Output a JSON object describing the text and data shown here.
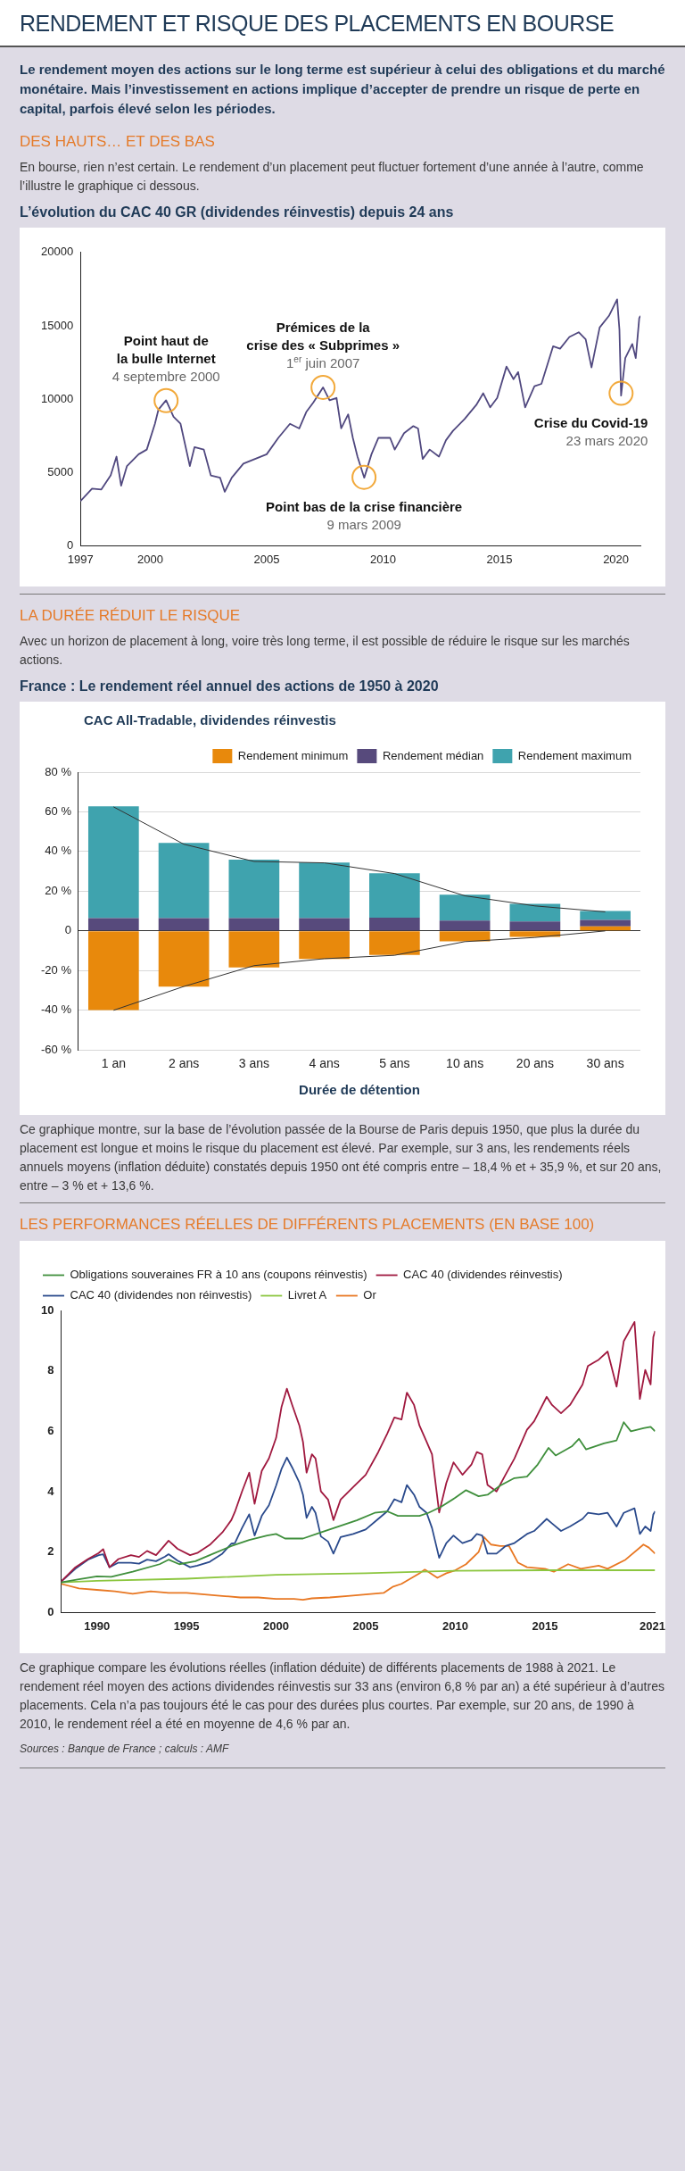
{
  "chart_data": [
    {
      "type": "line",
      "title": "L’évolution du CAC 40 GR (dividendes réinvestis) depuis 24 ans",
      "annotations": [
        "RENDEMENT ET RISQUE DES PLACEMENTS EN BOURSE",
        "Le rendement moyen des actions sur le long terme est supérieur à celui des obligations et du marché monétaire. Mais l’investissement en actions implique d’accepter de prendre un risque de perte en capital, parfois élevé selon les périodes.",
        "DES HAUTS… ET DES BAS",
        "En bourse, rien n’est certain. Le rendement d’un placement peut fluctuer fortement d’une année à l’autre, comme l’illustre le graphique ci dessous.",
        {
          "text": "Point haut de\nla bulle Internet\n4 septembre 2000",
          "x": 2000.68,
          "y": 9900
        },
        {
          "text": "Prémices de la\ncrise des « Subprimes »\n1$^{er}$ juin 2007",
          "x": 2007.42,
          "y": 10800
        },
        {
          "text": "Point bas de la crise financière\n9 mars 2009",
          "x": 2009.18,
          "y": 4670
        },
        {
          "text": "Crise du Covid-19\n23 mars 2020",
          "x": 2020.22,
          "y": 10400
        }
      ],
      "x": [
        1997.0,
        1997.5,
        1997.9,
        1998.3,
        1998.55,
        1998.75,
        1999.0,
        1999.5,
        1999.85,
        2000.2,
        2000.35,
        2000.68,
        2001.0,
        2001.3,
        2001.7,
        2001.9,
        2002.3,
        2002.6,
        2003.0,
        2003.2,
        2003.5,
        2004.0,
        2004.5,
        2005.0,
        2005.5,
        2006.0,
        2006.4,
        2006.7,
        2007.0,
        2007.42,
        2007.7,
        2008.0,
        2008.2,
        2008.5,
        2008.7,
        2008.9,
        2009.19,
        2009.5,
        2009.8,
        2010.3,
        2010.5,
        2010.9,
        2011.3,
        2011.5,
        2011.7,
        2012.0,
        2012.4,
        2012.7,
        2013.0,
        2013.5,
        2014.0,
        2014.3,
        2014.6,
        2014.9,
        2015.3,
        2015.6,
        2015.8,
        2016.1,
        2016.5,
        2016.8,
        2017.3,
        2017.6,
        2018.0,
        2018.4,
        2018.7,
        2018.95,
        2019.3,
        2019.7,
        2020.05,
        2020.15,
        2020.22,
        2020.4,
        2020.7,
        2020.85,
        2021.0,
        2021.05
      ],
      "series": [
        {
          "color": "#50487f",
          "values": [
            3040,
            3900,
            3840,
            4800,
            6080,
            4100,
            5440,
            6240,
            6560,
            8320,
            9280,
            9920,
            8800,
            8320,
            5440,
            6720,
            6560,
            4800,
            4640,
            3680,
            4640,
            5600,
            5920,
            6240,
            7360,
            8320,
            8000,
            9120,
            9760,
            10800,
            9920,
            10080,
            8000,
            8960,
            7360,
            6080,
            4640,
            6240,
            7360,
            7360,
            6560,
            7680,
            8160,
            8000,
            5920,
            6560,
            6080,
            7200,
            7840,
            8640,
            9600,
            10400,
            9440,
            10080,
            12220,
            11360,
            11840,
            9440,
            10880,
            11040,
            13600,
            13440,
            14240,
            14560,
            14080,
            12160,
            14880,
            15680,
            16800,
            14720,
            10240,
            12800,
            13760,
            12800,
            15520,
            15680
          ]
        }
      ],
      "xlim": [
        1997,
        2021.05
      ],
      "xticks": [
        1997,
        2000,
        2005,
        2010,
        2015,
        2020
      ],
      "ylim": [
        0,
        20000
      ],
      "yticks": [
        0,
        5000,
        10000,
        15000,
        20000
      ],
      "grid": false,
      "legend": false
    },
    {
      "type": "bar",
      "title": "France : Le rendement réel annuel des actions de 1950 à 2020",
      "subtitle": "CAC All-Tradable, dividendes réinvestis",
      "xlabel": "Durée de détention",
      "annotations": [
        "LA DURÉE RÉDUIT LE RISQUE",
        "Avec un horizon de placement à long, voire très long terme, il est possible de réduire le risque sur les marchés actions.",
        "Ce graphique montre, sur la base de l’évolution passée de la Bourse de Paris depuis 1950, que plus la durée du placement est longue et moins le risque du placement est élevé. Par exemple, sur 3 ans, les rendements réels annuels moyens (inflation déduite) constatés depuis 1950 ont été compris entre – 18,4 % et + 35,9 %, et sur 20 ans, entre – 3 % et + 13,6 %."
      ],
      "categories": [
        "1 an",
        "2 ans",
        "3 ans",
        "4 ans",
        "5 ans",
        "10 ans",
        "20 ans",
        "30 ans"
      ],
      "series": [
        {
          "name": "Rendement minimum",
          "color": "#e8890c",
          "values": [
            -39.9,
            -28.1,
            -18.4,
            -14.1,
            -12.1,
            -5.2,
            -3,
            2.3
          ]
        },
        {
          "name": "Rendement médian",
          "color": "#574a7c",
          "values": [
            6.4,
            6.4,
            6.4,
            6.4,
            6.7,
            5.2,
            4.8,
            3.3
          ]
        },
        {
          "name": "Rendement maximum",
          "color": "#3fa3ae",
          "values": [
            56.4,
            37.9,
            29.5,
            28.1,
            22.4,
            13.1,
            8.8,
            4.4
          ]
        },
        {
          "type": "line",
          "color": "#333333",
          "values": [
            62.5,
            43.7,
            35,
            34.3,
            28.9,
            17.7,
            12.6,
            9.6
          ]
        },
        {
          "type": "line",
          "color": "#333333",
          "values": [
            -40,
            -28,
            -17.5,
            -14,
            -12.3,
            -5.4,
            -3.3,
            0
          ]
        }
      ],
      "ylim": [
        -60,
        80
      ],
      "yticks": [
        {
          "value": -60,
          "label": "-60 %"
        },
        {
          "value": -40,
          "label": "-40 %"
        },
        {
          "value": -20,
          "label": "-20 %"
        },
        0,
        {
          "value": 20,
          "label": "20 %"
        },
        {
          "value": 40,
          "label": "40 %"
        },
        {
          "value": 60,
          "label": "60 %"
        },
        {
          "value": 80,
          "label": "80 %"
        }
      ],
      "grid": "y",
      "legend": "top right",
      "stacked": true
    },
    {
      "type": "line",
      "title": "LES PERFORMANCES RÉELLES DE DIFFÉRENTS PLACEMENTS (EN BASE 100)",
      "annotations": [
        "Ce graphique compare les évolutions réelles (inflation déduite) de différents placements de 1988 à 2021. Le rendement réel moyen des actions dividendes réinvestis sur 33 ans (environ 6,8 % par an) a été supérieur à d’autres placements. Cela n’a pas toujours été le cas pour des durées plus courtes. Par exemple, sur 20 ans, de 1990 à 2010, le rendement réel a été en moyenne de 4,6 % par an.",
        "Sources : Banque de France ; calculs : AMF"
      ],
      "series": [
        {
          "name": "Obligations souveraines FR à 10 ans (coupons réinvestis)",
          "color": "#3f8f3c",
          "x": [
            1988.0,
            1989,
            1990,
            1990.8,
            1992,
            1993.5,
            1994,
            1994.6,
            1995.5,
            1996.5,
            1997.5,
            1998.5,
            1999.5,
            2000.0,
            2000.5,
            2001.5,
            2002.5,
            2003.5,
            2004.5,
            2005.5,
            2006.2,
            2006.8,
            2008,
            2008.5,
            2009.2,
            2010,
            2010.6,
            2011.3,
            2011.8,
            2012.5,
            2013.3,
            2014,
            2014.6,
            2015.2,
            2015.6,
            2016.5,
            2016.9,
            2017.3,
            2018.3,
            2019,
            2019.4,
            2019.8,
            2020.5,
            2020.9,
            2021.15
          ],
          "values": [
            1.0,
            1.1,
            1.2,
            1.18,
            1.35,
            1.6,
            1.75,
            1.6,
            1.7,
            1.95,
            2.2,
            2.4,
            2.55,
            2.6,
            2.45,
            2.45,
            2.65,
            2.85,
            3.05,
            3.3,
            3.35,
            3.2,
            3.2,
            3.3,
            3.5,
            3.8,
            4.05,
            3.85,
            3.9,
            4.2,
            4.45,
            4.5,
            4.9,
            5.45,
            5.2,
            5.5,
            5.75,
            5.4,
            5.6,
            5.7,
            6.3,
            6.0,
            6.1,
            6.15,
            6.0
          ]
        },
        {
          "name": "CAC 40 (dividendes réinvestis)",
          "color": "#a0193f",
          "x": [
            1988.0,
            1988.8,
            1989.5,
            1990.1,
            1990.35,
            1990.7,
            1991.2,
            1991.9,
            1992.35,
            1992.8,
            1993.3,
            1993.8,
            1994.0,
            1994.5,
            1995.2,
            1995.6,
            1996.3,
            1997.0,
            1997.5,
            1997.7,
            1998.1,
            1998.5,
            1998.8,
            1999.2,
            1999.6,
            2000.0,
            2000.3,
            2000.6,
            2000.9,
            2001.3,
            2001.5,
            2001.7,
            2002.0,
            2002.2,
            2002.5,
            2002.9,
            2003.2,
            2003.6,
            2004.3,
            2005.0,
            2005.7,
            2006.2,
            2006.6,
            2007.0,
            2007.3,
            2007.7,
            2008.0,
            2008.4,
            2008.7,
            2009.1,
            2009.5,
            2009.9,
            2010.4,
            2010.9,
            2011.2,
            2011.5,
            2011.8,
            2012.3,
            2012.8,
            2013.3,
            2014.0,
            2014.4,
            2015.1,
            2015.4,
            2015.9,
            2016.4,
            2017.1,
            2017.4,
            2018.0,
            2018.5,
            2019.0,
            2019.4,
            2020.0,
            2020.3,
            2020.6,
            2020.9,
            2021.05,
            2021.15
          ],
          "values": [
            1.02,
            1.5,
            1.77,
            1.97,
            2.1,
            1.5,
            1.77,
            1.9,
            1.84,
            2.04,
            1.9,
            2.24,
            2.38,
            2.11,
            1.9,
            1.97,
            2.24,
            2.65,
            3.06,
            3.33,
            4.01,
            4.63,
            3.6,
            4.69,
            5.1,
            5.78,
            6.8,
            7.41,
            6.87,
            6.19,
            5.65,
            4.63,
            5.24,
            5.1,
            4.01,
            3.74,
            3.06,
            3.74,
            4.15,
            4.56,
            5.31,
            5.92,
            6.46,
            6.39,
            7.28,
            6.87,
            6.19,
            5.65,
            5.24,
            3.31,
            4.29,
            4.97,
            4.56,
            4.9,
            5.31,
            5.24,
            4.22,
            4.01,
            4.56,
            5.1,
            6.05,
            6.33,
            7.14,
            6.87,
            6.6,
            6.87,
            7.55,
            8.16,
            8.37,
            8.64,
            7.48,
            8.98,
            9.62,
            7.07,
            8.03,
            7.55,
            9.12,
            9.32
          ]
        },
        {
          "name": "CAC 40 (dividendes non réinvestis)",
          "color": "#2a4a8c",
          "x": [
            1988.0,
            1988.8,
            1989.5,
            1990.1,
            1990.35,
            1990.7,
            1991.2,
            1991.9,
            1992.35,
            1992.8,
            1993.3,
            1993.8,
            1994.0,
            1994.5,
            1995.2,
            1995.6,
            1996.3,
            1997.0,
            1997.5,
            1997.7,
            1998.1,
            1998.5,
            1998.8,
            1999.2,
            1999.6,
            2000.0,
            2000.3,
            2000.6,
            2000.9,
            2001.3,
            2001.5,
            2001.7,
            2002.0,
            2002.2,
            2002.5,
            2002.9,
            2003.2,
            2003.6,
            2004.3,
            2005.0,
            2005.7,
            2006.2,
            2006.6,
            2007.0,
            2007.3,
            2007.7,
            2008.0,
            2008.4,
            2008.7,
            2009.1,
            2009.5,
            2009.9,
            2010.4,
            2010.9,
            2011.2,
            2011.5,
            2011.8,
            2012.3,
            2012.8,
            2013.3,
            2014.0,
            2014.4,
            2015.1,
            2015.4,
            2015.9,
            2016.4,
            2017.1,
            2017.4,
            2018.0,
            2018.5,
            2019.0,
            2019.4,
            2020.0,
            2020.3,
            2020.6,
            2020.9,
            2021.05,
            2021.15
          ],
          "values": [
            1.02,
            1.45,
            1.75,
            1.9,
            1.93,
            1.5,
            1.65,
            1.65,
            1.62,
            1.75,
            1.7,
            1.85,
            1.93,
            1.72,
            1.5,
            1.55,
            1.68,
            1.95,
            2.28,
            2.3,
            2.8,
            3.25,
            2.55,
            3.2,
            3.55,
            4.2,
            4.75,
            5.13,
            4.8,
            4.3,
            3.9,
            3.13,
            3.5,
            3.3,
            2.52,
            2.35,
            1.95,
            2.5,
            2.6,
            2.75,
            3.1,
            3.35,
            3.75,
            3.65,
            4.22,
            3.9,
            3.5,
            3.3,
            2.8,
            1.81,
            2.3,
            2.55,
            2.3,
            2.4,
            2.6,
            2.55,
            1.95,
            1.95,
            2.2,
            2.3,
            2.6,
            2.7,
            3.1,
            2.95,
            2.7,
            2.85,
            3.1,
            3.3,
            3.25,
            3.3,
            2.85,
            3.3,
            3.45,
            2.6,
            2.85,
            2.7,
            3.25,
            3.35
          ]
        },
        {
          "name": "Livret A",
          "color": "#8cc63f",
          "x": [
            1988,
            1990,
            1995,
            2000,
            2005,
            2010,
            2015,
            2021.15
          ],
          "values": [
            1.0,
            1.05,
            1.12,
            1.25,
            1.3,
            1.38,
            1.4,
            1.4
          ]
        },
        {
          "name": "Or",
          "color": "#e87722",
          "x": [
            1988.0,
            1989,
            1990,
            1991,
            1992,
            1993,
            1994,
            1995,
            1996,
            1997,
            1998,
            1999,
            2000,
            2001,
            2001.5,
            2002,
            2003,
            2004,
            2005,
            2006,
            2006.5,
            2007,
            2008,
            2008.3,
            2009,
            2009.5,
            2010,
            2010.6,
            2011.3,
            2011.6,
            2012.0,
            2012.5,
            2013.0,
            2013.5,
            2014,
            2015,
            2015.5,
            2016.3,
            2017,
            2018,
            2018.5,
            2019.5,
            2020.5,
            2020.8,
            2021.15
          ],
          "values": [
            0.95,
            0.8,
            0.75,
            0.7,
            0.62,
            0.7,
            0.65,
            0.65,
            0.6,
            0.55,
            0.5,
            0.5,
            0.45,
            0.45,
            0.42,
            0.47,
            0.5,
            0.55,
            0.6,
            0.65,
            0.85,
            0.95,
            1.3,
            1.42,
            1.15,
            1.3,
            1.4,
            1.6,
            2.0,
            2.5,
            2.25,
            2.2,
            2.2,
            1.65,
            1.5,
            1.45,
            1.35,
            1.6,
            1.45,
            1.55,
            1.45,
            1.75,
            2.25,
            2.15,
            1.95
          ]
        }
      ],
      "xlim": [
        1988,
        2021.15
      ],
      "xticks": [
        1990,
        1995,
        2000,
        2005,
        2010,
        2015,
        2021
      ],
      "ylim": [
        0,
        10
      ],
      "yticks": [
        0,
        2,
        4,
        6,
        8,
        10
      ],
      "grid": false,
      "legend": "top left"
    }
  ]
}
